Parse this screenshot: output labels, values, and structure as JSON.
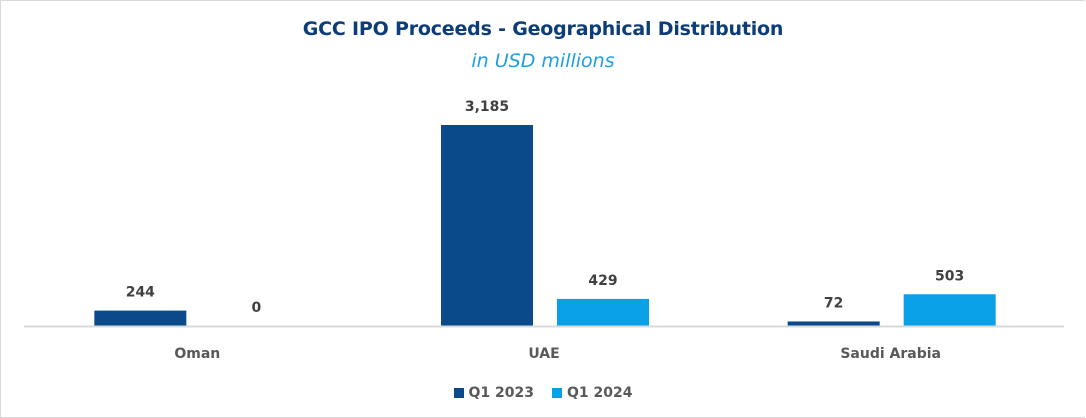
{
  "chart_data": {
    "type": "bar",
    "title": "GCC IPO Proceeds - Geographical Distribution",
    "subtitle": "in USD millions",
    "xlabel": "",
    "ylabel": "",
    "categories": [
      "Oman",
      "UAE",
      "Saudi Arabia"
    ],
    "series": [
      {
        "name": "Q1 2023",
        "color": "#0a4a8a",
        "values": [
          244,
          3185,
          72
        ],
        "labels": [
          "244",
          "3,185",
          "72"
        ]
      },
      {
        "name": "Q1 2024",
        "color": "#0aa0e8",
        "values": [
          0,
          429,
          503
        ],
        "labels": [
          "0",
          "429",
          "503"
        ]
      }
    ],
    "ylim": [
      0,
      3185
    ],
    "y_axis_visible": false,
    "grid": false,
    "legend_position": "bottom",
    "data_labels": true
  },
  "colors": {
    "title": "#0d3d78",
    "subtitle": "#1f9ee0",
    "axis": "#d9d9d9",
    "label_text": "#404040",
    "category_text": "#595959"
  }
}
